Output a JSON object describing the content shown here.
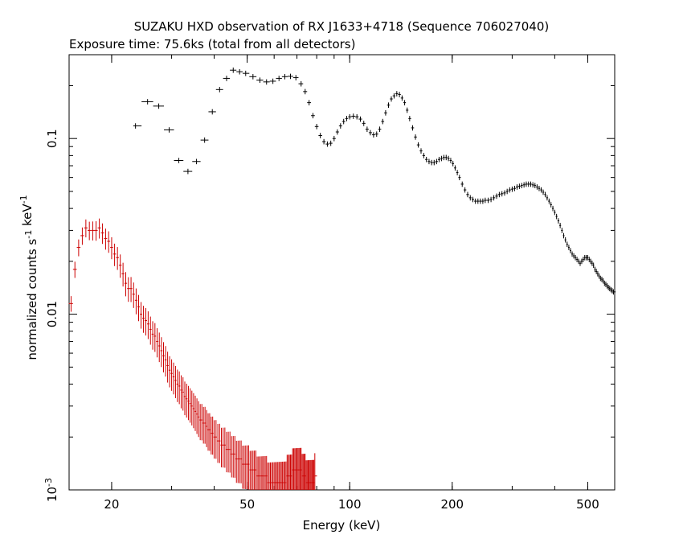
{
  "chart_data": {
    "type": "scatter",
    "title": "SUZAKU HXD observation of RX J1633+4718 (Sequence 706027040)",
    "subtitle": "Exposure time: 75.6ks (total from all detectors)",
    "xlabel": "Energy (keV)",
    "ylabel": "normalized counts s^-1 keV^-1",
    "x_scale": "log",
    "y_scale": "log",
    "xlim": [
      15,
      600
    ],
    "ylim": [
      0.001,
      0.3
    ],
    "grid": false,
    "x_ticks": [
      {
        "value": 20,
        "label": "20"
      },
      {
        "value": 50,
        "label": "50"
      },
      {
        "value": 100,
        "label": "100"
      },
      {
        "value": 200,
        "label": "200"
      },
      {
        "value": 500,
        "label": "500"
      }
    ],
    "y_ticks": [
      {
        "value": 0.001,
        "label": "10^-3"
      },
      {
        "value": 0.01,
        "label": "0.01"
      },
      {
        "value": 0.1,
        "label": "0.1"
      }
    ],
    "series": [
      {
        "color": "#000000",
        "points": [
          [
            23.5,
            0.118
          ],
          [
            25.5,
            0.162
          ],
          [
            27.5,
            0.153
          ],
          [
            29.5,
            0.112
          ],
          [
            31.5,
            0.075
          ],
          [
            33.5,
            0.065
          ],
          [
            35.5,
            0.074
          ],
          [
            37.5,
            0.098
          ],
          [
            39.5,
            0.142
          ],
          [
            41.5,
            0.19
          ],
          [
            43.5,
            0.22
          ],
          [
            45.5,
            0.245
          ],
          [
            47.5,
            0.24
          ],
          [
            49.5,
            0.235
          ],
          [
            52,
            0.225
          ],
          [
            54.5,
            0.215
          ],
          [
            57,
            0.21
          ],
          [
            59.5,
            0.212
          ],
          [
            62,
            0.22
          ],
          [
            64.5,
            0.225
          ],
          [
            67,
            0.226
          ],
          [
            69.5,
            0.222
          ],
          [
            72,
            0.205
          ],
          [
            74,
            0.185
          ],
          [
            76,
            0.16
          ],
          [
            78,
            0.135
          ],
          [
            80,
            0.117
          ],
          [
            82,
            0.104
          ],
          [
            84,
            0.096
          ],
          [
            86,
            0.093
          ],
          [
            88,
            0.094
          ],
          [
            90,
            0.1
          ],
          [
            92,
            0.109
          ],
          [
            94,
            0.118
          ],
          [
            96,
            0.125
          ],
          [
            98,
            0.13
          ],
          [
            100,
            0.133
          ],
          [
            102.5,
            0.134
          ],
          [
            105,
            0.133
          ],
          [
            107.5,
            0.129
          ],
          [
            110,
            0.122
          ],
          [
            112.5,
            0.113
          ],
          [
            115,
            0.108
          ],
          [
            117.5,
            0.105
          ],
          [
            120,
            0.106
          ],
          [
            122.5,
            0.113
          ],
          [
            125,
            0.125
          ],
          [
            127.5,
            0.14
          ],
          [
            130,
            0.155
          ],
          [
            132.5,
            0.168
          ],
          [
            135,
            0.175
          ],
          [
            137.5,
            0.18
          ],
          [
            140,
            0.178
          ],
          [
            142.5,
            0.17
          ],
          [
            145,
            0.16
          ],
          [
            147.5,
            0.145
          ],
          [
            150,
            0.13
          ],
          [
            153,
            0.115
          ],
          [
            156,
            0.102
          ],
          [
            159,
            0.092
          ],
          [
            162,
            0.085
          ],
          [
            165,
            0.08
          ],
          [
            168,
            0.076
          ],
          [
            171,
            0.074
          ],
          [
            174,
            0.073
          ],
          [
            177,
            0.073
          ],
          [
            180,
            0.074
          ],
          [
            183,
            0.076
          ],
          [
            186,
            0.077
          ],
          [
            189,
            0.078
          ],
          [
            192,
            0.078
          ],
          [
            195,
            0.077
          ],
          [
            198,
            0.075
          ],
          [
            201,
            0.072
          ],
          [
            204,
            0.068
          ],
          [
            207,
            0.064
          ],
          [
            210,
            0.06
          ],
          [
            214,
            0.055
          ],
          [
            218,
            0.051
          ],
          [
            222,
            0.048
          ],
          [
            226,
            0.046
          ],
          [
            230,
            0.045
          ],
          [
            234,
            0.044
          ],
          [
            238,
            0.044
          ],
          [
            242,
            0.044
          ],
          [
            246,
            0.044
          ],
          [
            250,
            0.0445
          ],
          [
            255,
            0.0445
          ],
          [
            260,
            0.045
          ],
          [
            265,
            0.046
          ],
          [
            270,
            0.047
          ],
          [
            275,
            0.048
          ],
          [
            280,
            0.0485
          ],
          [
            285,
            0.049
          ],
          [
            290,
            0.05
          ],
          [
            295,
            0.051
          ],
          [
            300,
            0.0515
          ],
          [
            305,
            0.052
          ],
          [
            310,
            0.053
          ],
          [
            315,
            0.0535
          ],
          [
            320,
            0.054
          ],
          [
            325,
            0.0545
          ],
          [
            330,
            0.055
          ],
          [
            335,
            0.055
          ],
          [
            340,
            0.055
          ],
          [
            345,
            0.0545
          ],
          [
            350,
            0.054
          ],
          [
            355,
            0.053
          ],
          [
            360,
            0.052
          ],
          [
            365,
            0.051
          ],
          [
            370,
            0.0495
          ],
          [
            375,
            0.048
          ],
          [
            380,
            0.046
          ],
          [
            385,
            0.044
          ],
          [
            390,
            0.042
          ],
          [
            395,
            0.04
          ],
          [
            400,
            0.038
          ],
          [
            405,
            0.036
          ],
          [
            410,
            0.034
          ],
          [
            415,
            0.032
          ],
          [
            420,
            0.03
          ],
          [
            425,
            0.028
          ],
          [
            430,
            0.0265
          ],
          [
            435,
            0.025
          ],
          [
            440,
            0.024
          ],
          [
            445,
            0.023
          ],
          [
            450,
            0.022
          ],
          [
            455,
            0.0215
          ],
          [
            460,
            0.021
          ],
          [
            465,
            0.0205
          ],
          [
            470,
            0.02
          ],
          [
            475,
            0.0195
          ],
          [
            480,
            0.02
          ],
          [
            485,
            0.0205
          ],
          [
            490,
            0.021
          ],
          [
            495,
            0.021
          ],
          [
            500,
            0.021
          ],
          [
            505,
            0.0205
          ],
          [
            510,
            0.02
          ],
          [
            515,
            0.0195
          ],
          [
            520,
            0.019
          ],
          [
            525,
            0.018
          ],
          [
            530,
            0.0175
          ],
          [
            535,
            0.017
          ],
          [
            540,
            0.0165
          ],
          [
            545,
            0.016
          ],
          [
            550,
            0.0158
          ],
          [
            555,
            0.0155
          ],
          [
            560,
            0.015
          ],
          [
            565,
            0.0148
          ],
          [
            570,
            0.0145
          ],
          [
            575,
            0.0142
          ],
          [
            580,
            0.014
          ],
          [
            585,
            0.0138
          ],
          [
            590,
            0.0136
          ],
          [
            595,
            0.0134
          ]
        ]
      },
      {
        "color": "#cc0000",
        "points": [
          [
            15.2,
            0.0115
          ],
          [
            15.6,
            0.018
          ],
          [
            16.0,
            0.024
          ],
          [
            16.4,
            0.028
          ],
          [
            16.8,
            0.031
          ],
          [
            17.2,
            0.03
          ],
          [
            17.6,
            0.03
          ],
          [
            18.0,
            0.03
          ],
          [
            18.4,
            0.031
          ],
          [
            18.8,
            0.029
          ],
          [
            19.2,
            0.027
          ],
          [
            19.6,
            0.026
          ],
          [
            20.0,
            0.024
          ],
          [
            20.4,
            0.022
          ],
          [
            20.8,
            0.021
          ],
          [
            21.2,
            0.019
          ],
          [
            21.6,
            0.017
          ],
          [
            22.0,
            0.015
          ],
          [
            22.4,
            0.014
          ],
          [
            22.8,
            0.014
          ],
          [
            23.2,
            0.013
          ],
          [
            23.6,
            0.012
          ],
          [
            24.0,
            0.011
          ],
          [
            24.4,
            0.01
          ],
          [
            24.8,
            0.0095
          ],
          [
            25.2,
            0.0092
          ],
          [
            25.6,
            0.0088
          ],
          [
            26.0,
            0.0082
          ],
          [
            26.4,
            0.0077
          ],
          [
            26.8,
            0.0075
          ],
          [
            27.2,
            0.007
          ],
          [
            27.6,
            0.0066
          ],
          [
            28.0,
            0.0062
          ],
          [
            28.4,
            0.0058
          ],
          [
            28.8,
            0.0055
          ],
          [
            29.2,
            0.0051
          ],
          [
            29.6,
            0.0048
          ],
          [
            30.0,
            0.0046
          ],
          [
            30.4,
            0.0044
          ],
          [
            30.8,
            0.0042
          ],
          [
            31.2,
            0.004
          ],
          [
            31.6,
            0.0039
          ],
          [
            32.0,
            0.0037
          ],
          [
            32.4,
            0.0036
          ],
          [
            32.8,
            0.0034
          ],
          [
            33.2,
            0.0033
          ],
          [
            33.6,
            0.0032
          ],
          [
            34.0,
            0.0031
          ],
          [
            34.4,
            0.003
          ],
          [
            34.8,
            0.0029
          ],
          [
            35.2,
            0.0028
          ],
          [
            35.6,
            0.0027
          ],
          [
            36.0,
            0.0026
          ],
          [
            36.4,
            0.0025
          ],
          [
            36.8,
            0.0025
          ],
          [
            37.2,
            0.0024
          ],
          [
            37.6,
            0.0024
          ],
          [
            38.0,
            0.0023
          ],
          [
            38.4,
            0.0022
          ],
          [
            38.8,
            0.0022
          ],
          [
            39.2,
            0.0021
          ],
          [
            39.6,
            0.0021
          ],
          [
            40.0,
            0.002
          ],
          [
            40.5,
            0.002
          ],
          [
            41.0,
            0.0019
          ],
          [
            41.5,
            0.0019
          ],
          [
            42.0,
            0.0018
          ],
          [
            42.5,
            0.0018
          ],
          [
            43.0,
            0.0018
          ],
          [
            43.5,
            0.0017
          ],
          [
            44.0,
            0.0017
          ],
          [
            44.5,
            0.0017
          ],
          [
            45.0,
            0.0016
          ],
          [
            45.5,
            0.0016
          ],
          [
            46.0,
            0.0016
          ],
          [
            46.5,
            0.0015
          ],
          [
            47.0,
            0.0015
          ],
          [
            47.5,
            0.0015
          ],
          [
            48.0,
            0.0015
          ],
          [
            48.5,
            0.0014
          ],
          [
            49.0,
            0.0014
          ],
          [
            49.5,
            0.0014
          ],
          [
            50.0,
            0.0014
          ],
          [
            50.5,
            0.0014
          ],
          [
            51.0,
            0.0013
          ],
          [
            51.5,
            0.0013
          ],
          [
            52.0,
            0.0013
          ],
          [
            52.5,
            0.0013
          ],
          [
            53.0,
            0.0013
          ],
          [
            53.5,
            0.0012
          ],
          [
            54.0,
            0.0012
          ],
          [
            54.5,
            0.0012
          ],
          [
            55.0,
            0.0012
          ],
          [
            55.5,
            0.0012
          ],
          [
            56.0,
            0.0012
          ],
          [
            56.5,
            0.0012
          ],
          [
            57.0,
            0.0012
          ],
          [
            57.5,
            0.0011
          ],
          [
            58.0,
            0.0011
          ],
          [
            58.5,
            0.0011
          ],
          [
            59.0,
            0.0011
          ],
          [
            59.5,
            0.0011
          ],
          [
            60.0,
            0.0011
          ],
          [
            60.5,
            0.0011
          ],
          [
            61.0,
            0.0011
          ],
          [
            61.5,
            0.0011
          ],
          [
            62.0,
            0.0011
          ],
          [
            62.5,
            0.0011
          ],
          [
            63.0,
            0.0011
          ],
          [
            63.5,
            0.0011
          ],
          [
            64.0,
            0.0011
          ],
          [
            64.5,
            0.0011
          ],
          [
            65.0,
            0.0011
          ],
          [
            65.5,
            0.0012
          ],
          [
            66.0,
            0.0012
          ],
          [
            66.5,
            0.0012
          ],
          [
            67.0,
            0.0012
          ],
          [
            67.5,
            0.0012
          ],
          [
            68.0,
            0.0013
          ],
          [
            68.5,
            0.0013
          ],
          [
            69.0,
            0.0013
          ],
          [
            69.5,
            0.0013
          ],
          [
            70.0,
            0.0013
          ],
          [
            70.5,
            0.0013
          ],
          [
            71.0,
            0.0013
          ],
          [
            71.5,
            0.0013
          ],
          [
            72.0,
            0.0013
          ],
          [
            72.5,
            0.0012
          ],
          [
            73.0,
            0.0012
          ],
          [
            73.5,
            0.0012
          ],
          [
            74.0,
            0.0012
          ],
          [
            74.5,
            0.0011
          ],
          [
            75.0,
            0.0011
          ],
          [
            75.5,
            0.0011
          ],
          [
            76.0,
            0.0011
          ],
          [
            76.5,
            0.0011
          ],
          [
            77.0,
            0.0011
          ],
          [
            77.5,
            0.0011
          ],
          [
            78.0,
            0.0011
          ],
          [
            78.5,
            0.0011
          ],
          [
            79.0,
            0.0012
          ]
        ]
      }
    ]
  }
}
